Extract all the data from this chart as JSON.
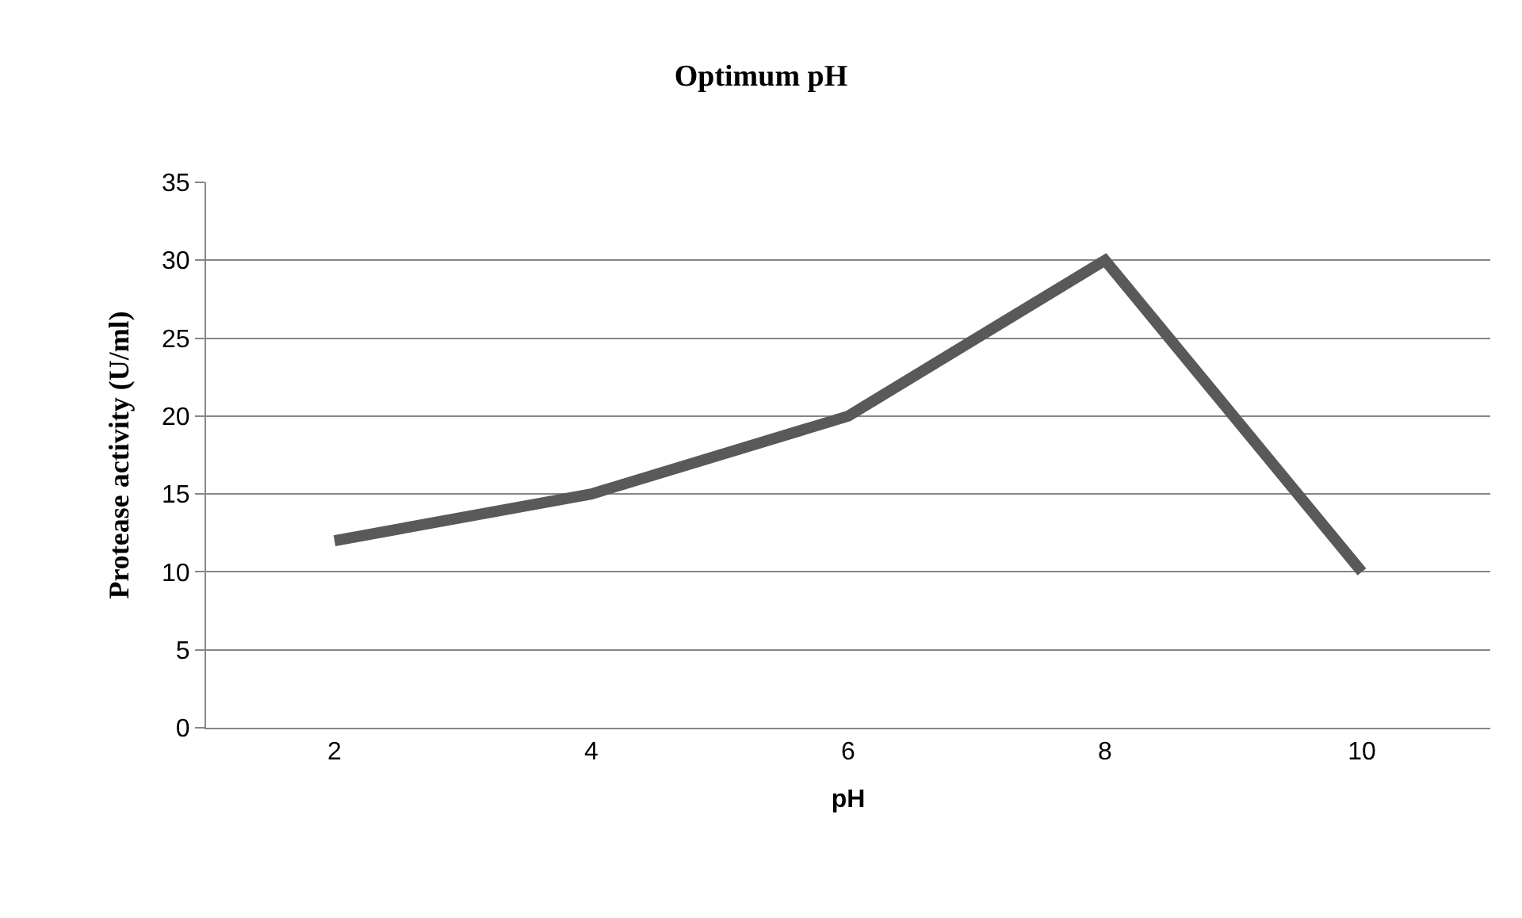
{
  "chart_data": {
    "type": "line",
    "title": "Optimum pH",
    "xlabel": "pH",
    "ylabel": "Protease activity (U/ml)",
    "categories": [
      "2",
      "4",
      "6",
      "8",
      "10"
    ],
    "series": [
      {
        "color": "#595959",
        "values": [
          12,
          15,
          20,
          30,
          10
        ]
      }
    ],
    "ylim": [
      0,
      35
    ],
    "yticks": [
      0,
      5,
      10,
      15,
      20,
      25,
      30,
      35
    ],
    "grid": "y",
    "marker": "none",
    "line_style": "solid"
  }
}
